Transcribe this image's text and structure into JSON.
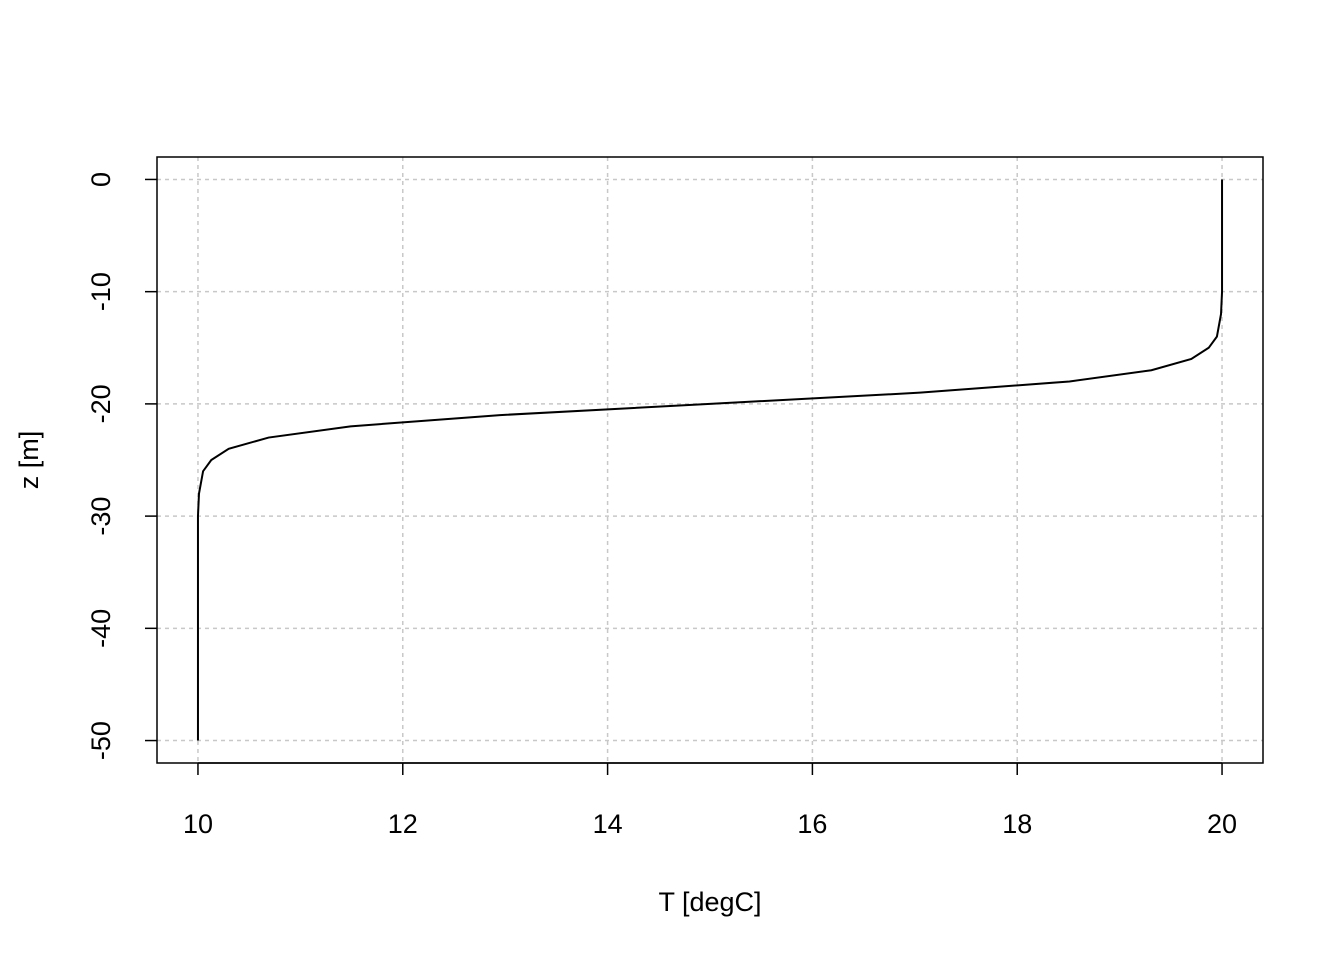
{
  "chart_data": {
    "type": "line",
    "x_label": "T [degC]",
    "y_label": "z [m]",
    "x": [
      20.0,
      20.0,
      20.0,
      19.99,
      19.95,
      19.87,
      19.7,
      19.31,
      18.51,
      17.05,
      15.0,
      12.95,
      11.49,
      10.69,
      10.3,
      10.13,
      10.05,
      10.01,
      10.0,
      10.0,
      10.0,
      10.0,
      10.0
    ],
    "series": [
      {
        "color": "#000000",
        "values": [
          0,
          -5,
          -10,
          -12,
          -14,
          -15,
          -16,
          -17,
          -18,
          -19,
          -20,
          -21,
          -22,
          -23,
          -24,
          -25,
          -26,
          -28,
          -30,
          -35,
          -40,
          -45,
          -50
        ]
      }
    ],
    "xlim": [
      9.6,
      20.4
    ],
    "ylim": [
      -52,
      2
    ],
    "xticks": [
      10,
      12,
      14,
      16,
      18,
      20
    ],
    "yticks": [
      0,
      -10,
      -20,
      -30,
      -40,
      -50
    ],
    "grid": true
  }
}
